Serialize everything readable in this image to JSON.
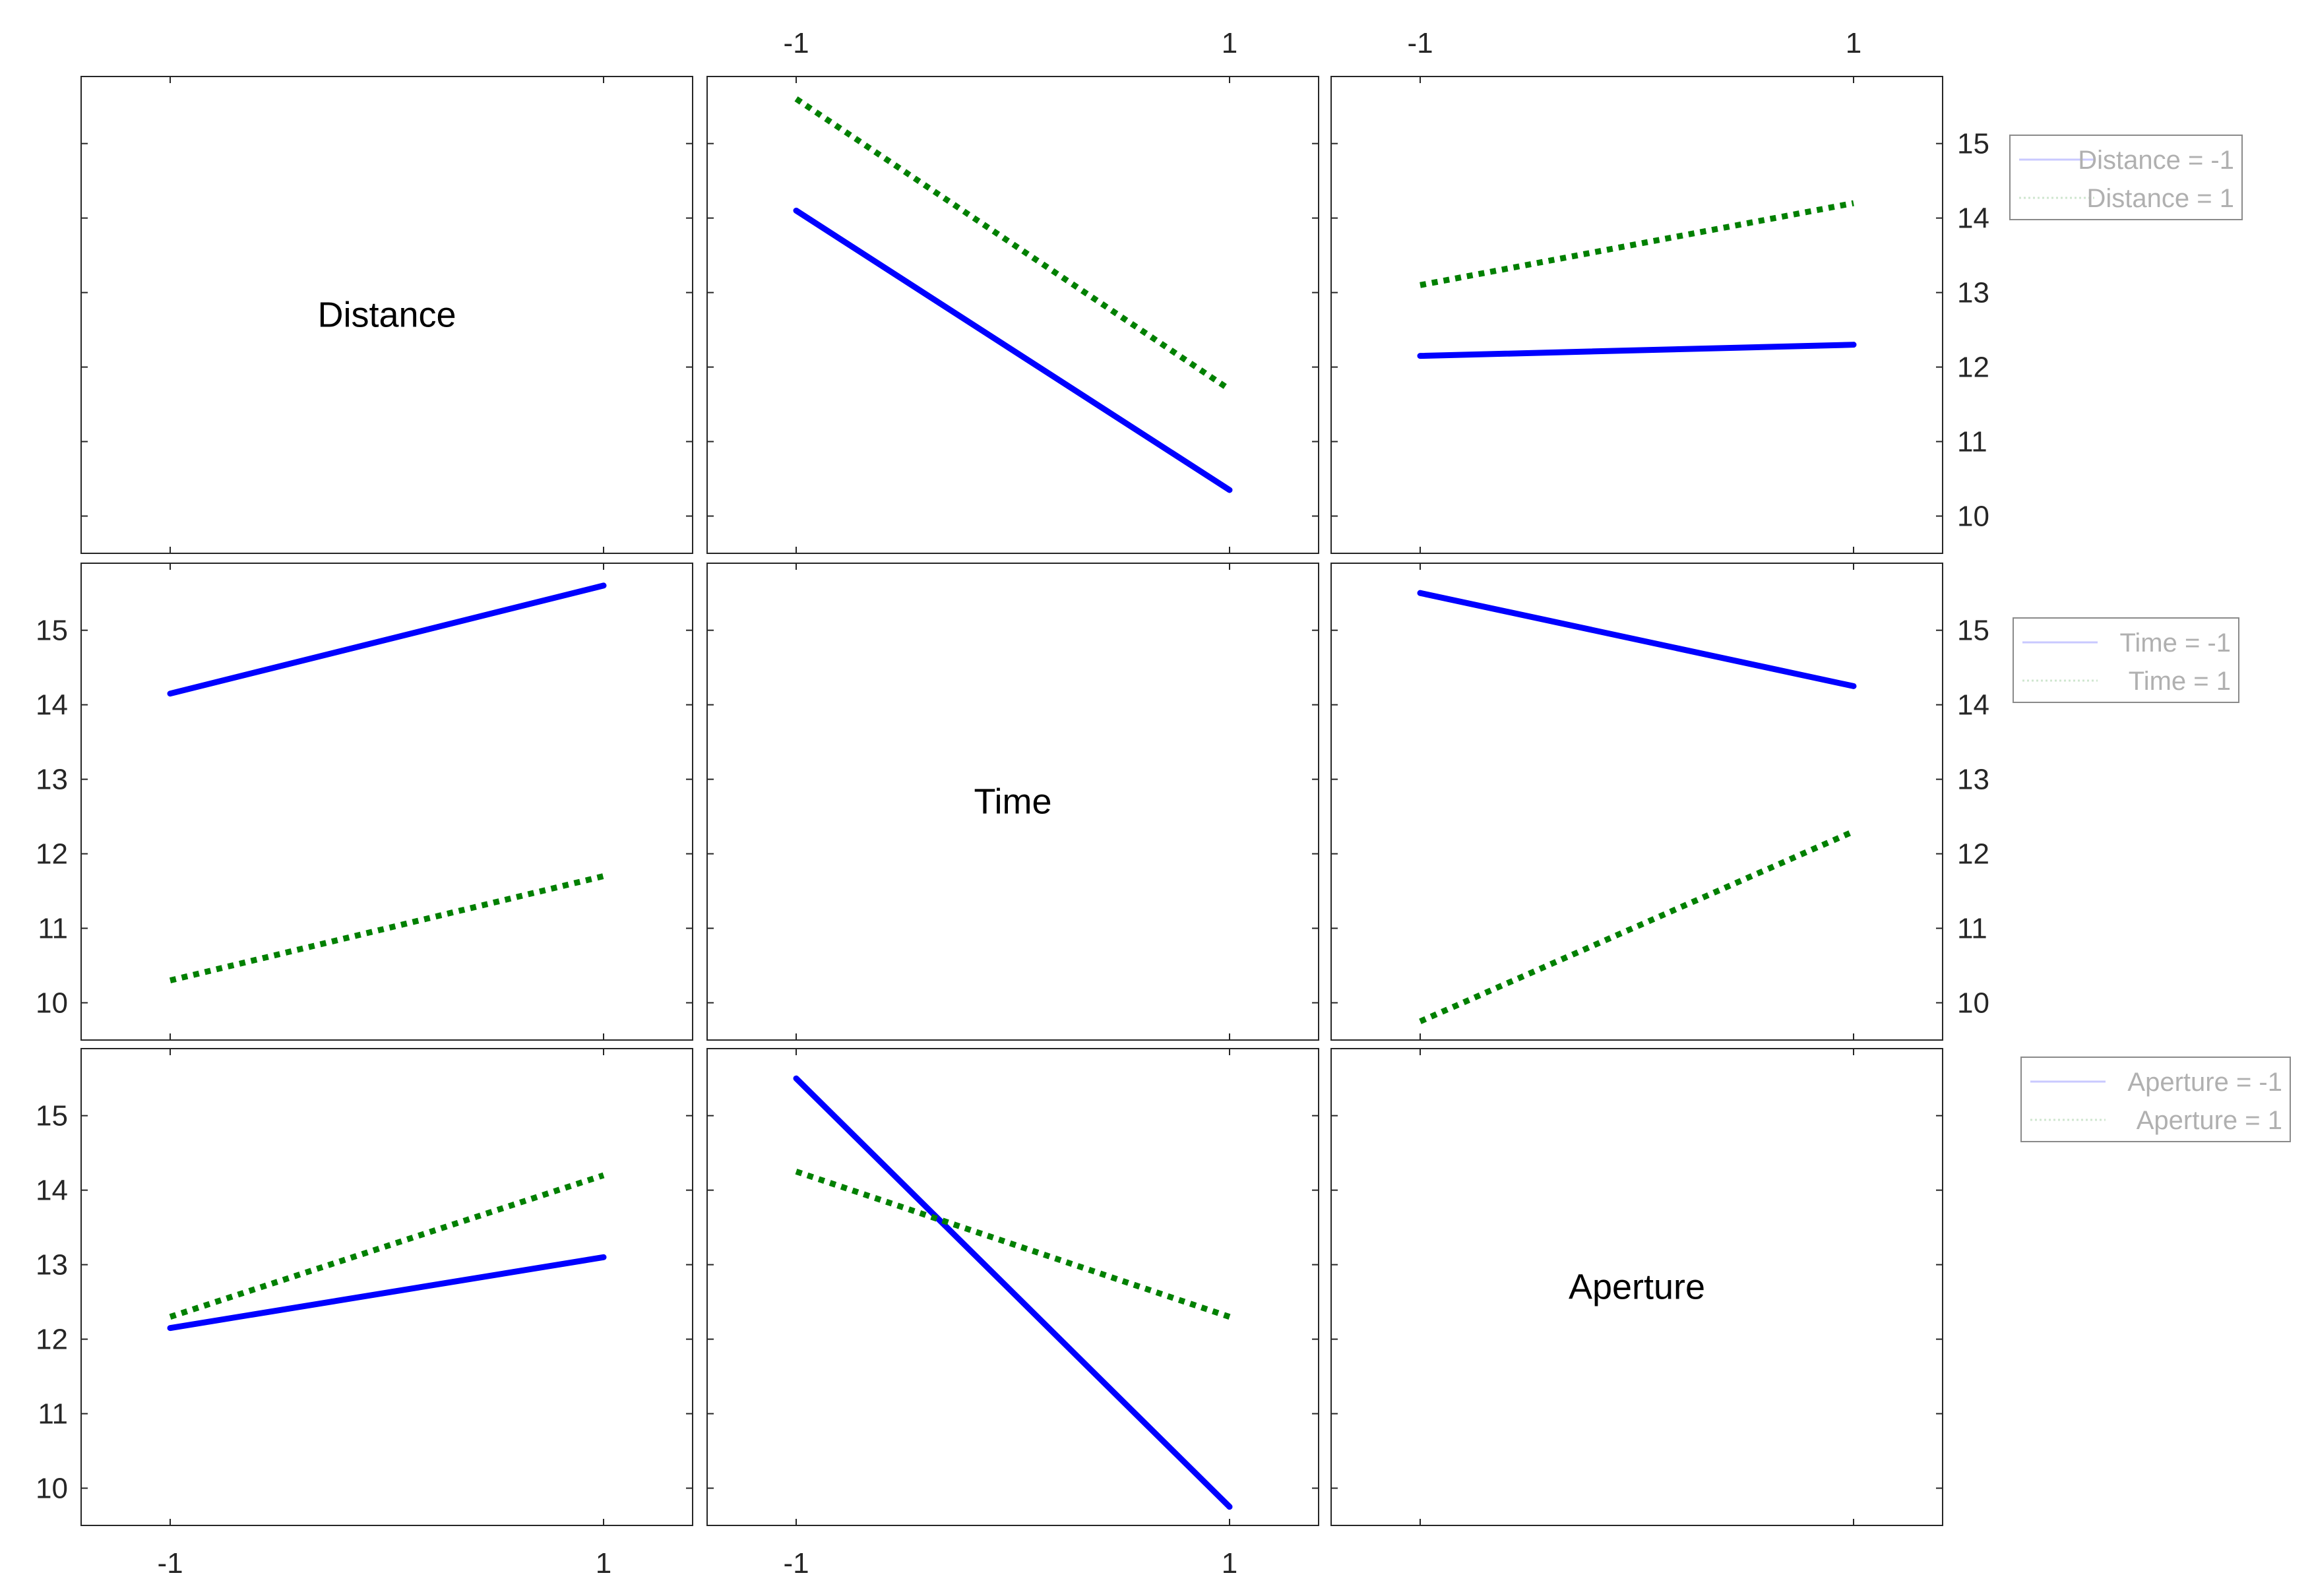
{
  "chart_data": {
    "type": "line",
    "title": "",
    "factors": [
      "Distance",
      "Time",
      "Aperture"
    ],
    "levels": [
      -1,
      1
    ],
    "x_ticks": [
      -1,
      1
    ],
    "y_ticks": [
      10,
      11,
      12,
      13,
      14,
      15
    ],
    "ylim": [
      9.5,
      15.9
    ],
    "grid": false,
    "series_colors": [
      "#0000ff",
      "#008000"
    ],
    "series_styles": [
      "solid",
      "dotted"
    ],
    "legends": [
      {
        "factor": "Distance",
        "entries": [
          "Distance = -1",
          "Distance = 1"
        ]
      },
      {
        "factor": "Time",
        "entries": [
          "Time = -1",
          "Time = 1"
        ]
      },
      {
        "factor": "Aperture",
        "entries": [
          "Aperture = -1",
          "Aperture = 1"
        ]
      }
    ],
    "panels": [
      {
        "row": 0,
        "col": 0,
        "diagonal": true,
        "label": "Distance"
      },
      {
        "row": 0,
        "col": 1,
        "diagonal": false,
        "x_factor": "Time",
        "trace_factor": "Distance",
        "series": [
          {
            "values": [
              14.1,
              10.35
            ]
          },
          {
            "values": [
              15.6,
              11.7
            ]
          }
        ]
      },
      {
        "row": 0,
        "col": 2,
        "diagonal": false,
        "x_factor": "Aperture",
        "trace_factor": "Distance",
        "series": [
          {
            "values": [
              12.15,
              12.3
            ]
          },
          {
            "values": [
              13.1,
              14.2
            ]
          }
        ]
      },
      {
        "row": 1,
        "col": 0,
        "diagonal": false,
        "x_factor": "Distance",
        "trace_factor": "Time",
        "series": [
          {
            "values": [
              14.15,
              15.6
            ]
          },
          {
            "values": [
              10.3,
              11.7
            ]
          }
        ]
      },
      {
        "row": 1,
        "col": 1,
        "diagonal": true,
        "label": "Time"
      },
      {
        "row": 1,
        "col": 2,
        "diagonal": false,
        "x_factor": "Aperture",
        "trace_factor": "Time",
        "series": [
          {
            "values": [
              15.5,
              14.25
            ]
          },
          {
            "values": [
              9.75,
              12.3
            ]
          }
        ]
      },
      {
        "row": 2,
        "col": 0,
        "diagonal": false,
        "x_factor": "Distance",
        "trace_factor": "Aperture",
        "series": [
          {
            "values": [
              12.15,
              13.1
            ]
          },
          {
            "values": [
              12.3,
              14.2
            ]
          }
        ]
      },
      {
        "row": 2,
        "col": 1,
        "diagonal": false,
        "x_factor": "Time",
        "trace_factor": "Aperture",
        "series": [
          {
            "values": [
              15.5,
              9.75
            ]
          },
          {
            "values": [
              14.25,
              12.3
            ]
          }
        ]
      },
      {
        "row": 2,
        "col": 2,
        "diagonal": true,
        "label": "Aperture"
      }
    ]
  }
}
